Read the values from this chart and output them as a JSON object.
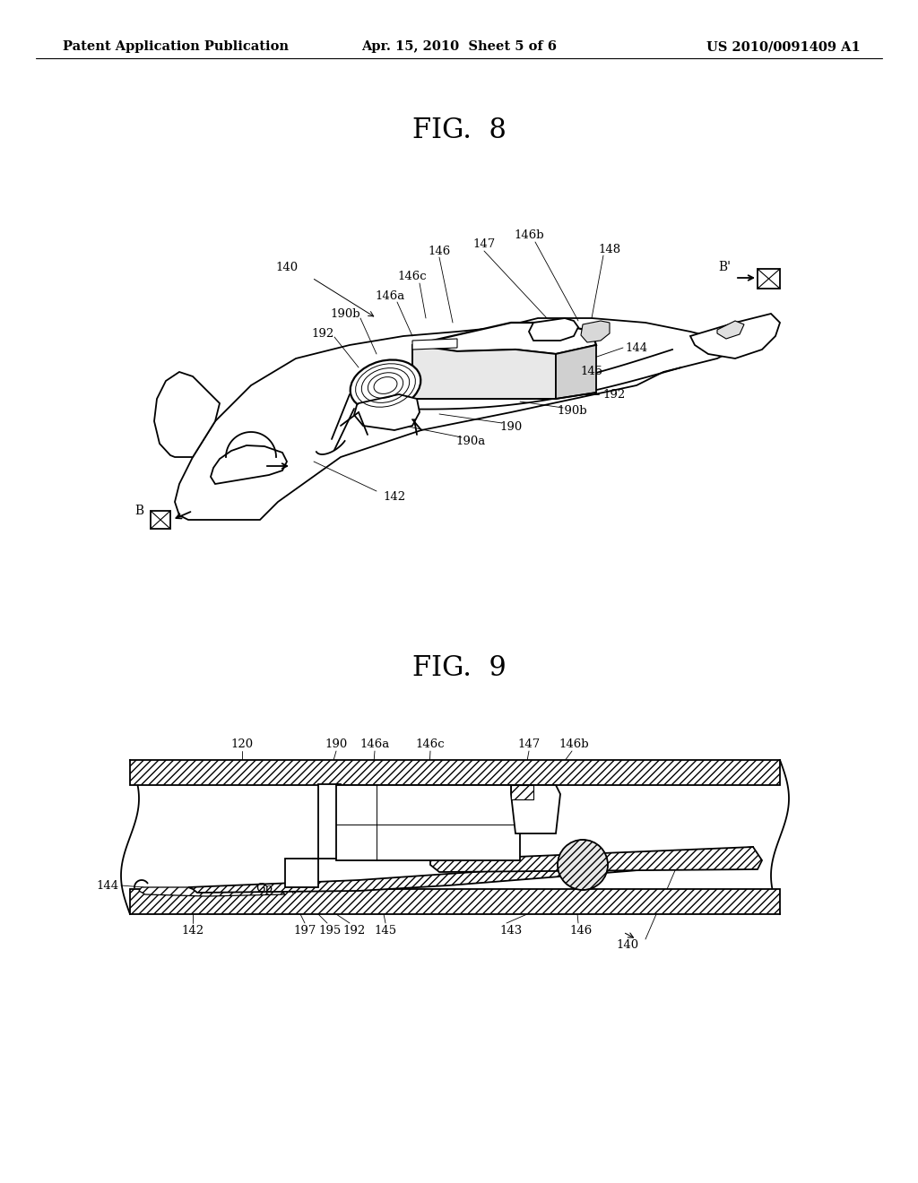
{
  "background_color": "#ffffff",
  "page_header": {
    "left": "Patent Application Publication",
    "center": "Apr. 15, 2010  Sheet 5 of 6",
    "right": "US 2010/0091409 A1",
    "fontsize": 10.5
  },
  "fig8_title": "FIG.  8",
  "fig9_title": "FIG.  9",
  "fig_title_fontsize": 22,
  "label_fontsize": 9.5,
  "line_color": "#000000",
  "line_width": 1.3
}
